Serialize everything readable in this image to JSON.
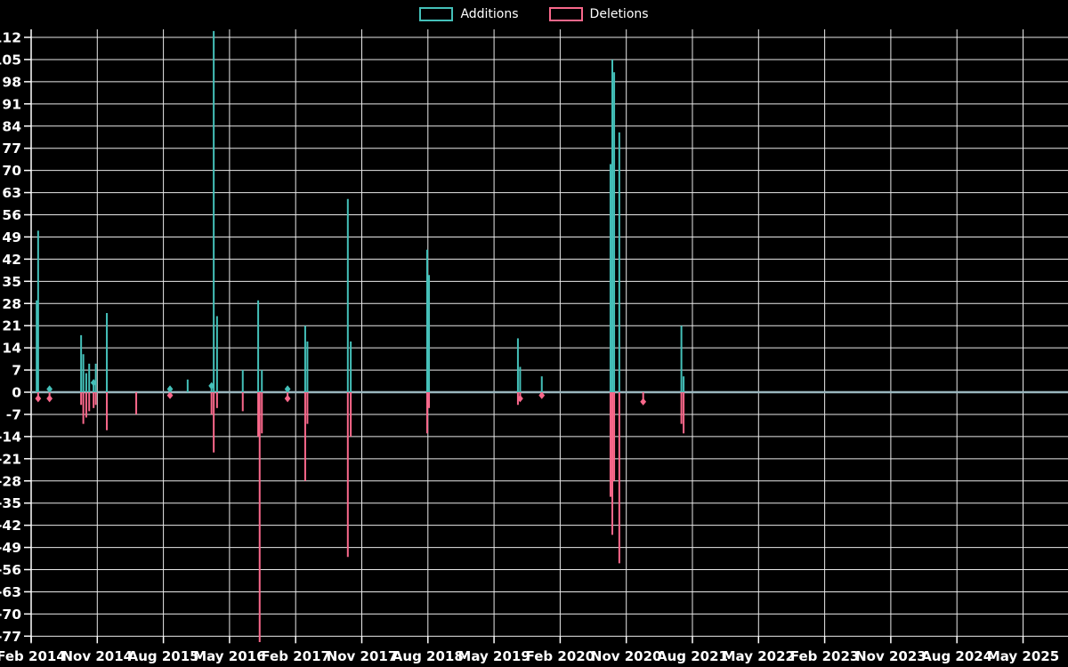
{
  "page": {
    "background": "#000000",
    "text_color": "#ffffff"
  },
  "legend": {
    "items": [
      {
        "label": "Additions",
        "color": "#44c0b9"
      },
      {
        "label": "Deletions",
        "color": "#f9688b"
      }
    ]
  },
  "chart_data": {
    "type": "line",
    "title": "",
    "xlabel": "",
    "ylabel": "",
    "grid": true,
    "legend_position": "top-center",
    "colors": {
      "additions": "#44c0b9",
      "deletions": "#f9688b",
      "zero_line": "#9ab7be",
      "grid": "#e9e9e9",
      "axis": "#ffffff",
      "tick_text": "#ffffff",
      "background": "#000000"
    },
    "x_axis": {
      "tick_labels": [
        "Feb 2014",
        "Nov 2014",
        "Aug 2015",
        "May 2016",
        "Feb 2017",
        "Nov 2017",
        "Aug 2018",
        "May 2019",
        "Feb 2020",
        "Nov 2020",
        "Aug 2021",
        "May 2022",
        "Feb 2023",
        "Nov 2023",
        "Aug 2024",
        "May 2025"
      ],
      "months_per_tick": 9
    },
    "y_axis": {
      "min": -77,
      "max": 112,
      "step": 7,
      "tick_labels": [
        "112",
        "105",
        "98",
        "91",
        "84",
        "77",
        "70",
        "63",
        "56",
        "49",
        "42",
        "35",
        "28",
        "21",
        "14",
        "7",
        "0",
        "-7",
        "-14",
        "-21",
        "-28",
        "-35",
        "-42",
        "-49",
        "-56",
        "-63",
        "-70",
        "-77"
      ]
    },
    "ylim_drawn": [
      -79,
      114.5
    ],
    "series": [
      {
        "name": "Additions",
        "sign": "positive"
      },
      {
        "name": "Deletions",
        "sign": "negative"
      }
    ],
    "baseline_value": 0,
    "baseline_extent_note": "zero line runs flat from Jul 2021 to right edge (May 2025+)",
    "events": [
      {
        "t": 0.75,
        "date": "Mar 2014",
        "additions": 29,
        "deletions": 0
      },
      {
        "t": 0.95,
        "date": "Mar 2014",
        "additions": 51,
        "deletions": -2
      },
      {
        "t": 2.5,
        "date": "Apr 2014",
        "additions": 1,
        "deletions": -2
      },
      {
        "t": 6.8,
        "date": "Sep 2014",
        "additions": 18,
        "deletions": -4
      },
      {
        "t": 7.1,
        "date": "Sep 2014",
        "additions": 12,
        "deletions": -10
      },
      {
        "t": 7.5,
        "date": "Sep 2014",
        "additions": 6,
        "deletions": -8
      },
      {
        "t": 7.9,
        "date": "Oct 2014",
        "additions": 9,
        "deletions": -6
      },
      {
        "t": 8.5,
        "date": "Oct 2014",
        "additions": 3,
        "deletions": -5
      },
      {
        "t": 8.8,
        "date": "Nov 2014",
        "additions": 9,
        "deletions": -4
      },
      {
        "t": 10.3,
        "date": "Dec 2014",
        "additions": 25,
        "deletions": -12
      },
      {
        "t": 14.3,
        "date": "Apr 2015",
        "additions": 0,
        "deletions": -7
      },
      {
        "t": 18.9,
        "date": "Sep 2015",
        "additions": 1,
        "deletions": -1
      },
      {
        "t": 21.3,
        "date": "Nov 2015",
        "additions": 4,
        "deletions": 0
      },
      {
        "t": 24.55,
        "date": "Feb 2016",
        "additions": 2,
        "deletions": -7
      },
      {
        "t": 24.85,
        "date": "Feb 2016",
        "additions": 114,
        "deletions": -19,
        "note": "additions spike clipped at top of plot (>112)"
      },
      {
        "t": 25.3,
        "date": "Mar 2016",
        "additions": 24,
        "deletions": -5
      },
      {
        "t": 28.8,
        "date": "Jun 2016",
        "additions": 7,
        "deletions": -6
      },
      {
        "t": 30.9,
        "date": "Sep 2016",
        "additions": 29,
        "deletions": -14
      },
      {
        "t": 31.1,
        "date": "Sep 2016",
        "additions": 0,
        "deletions": -79,
        "note": "deletions spike clipped at bottom of plot (<-77)"
      },
      {
        "t": 31.4,
        "date": "Sep 2016",
        "additions": 7,
        "deletions": -13
      },
      {
        "t": 34.9,
        "date": "Jan 2017",
        "additions": 1,
        "deletions": -2
      },
      {
        "t": 37.3,
        "date": "Mar 2017",
        "additions": 21,
        "deletions": -28
      },
      {
        "t": 37.6,
        "date": "Mar 2017",
        "additions": 16,
        "deletions": -10
      },
      {
        "t": 43.1,
        "date": "Sep 2017",
        "additions": 61,
        "deletions": -52
      },
      {
        "t": 43.5,
        "date": "Sep 2017",
        "additions": 16,
        "deletions": -14
      },
      {
        "t": 53.9,
        "date": "Aug 2018",
        "additions": 45,
        "deletions": -13
      },
      {
        "t": 54.15,
        "date": "Aug 2018",
        "additions": 37,
        "deletions": -5
      },
      {
        "t": 66.25,
        "date": "Aug 2019",
        "additions": 17,
        "deletions": -4
      },
      {
        "t": 66.55,
        "date": "Aug 2019",
        "additions": 8,
        "deletions": -2
      },
      {
        "t": 69.5,
        "date": "Nov 2019",
        "additions": 5,
        "deletions": -1
      },
      {
        "t": 78.85,
        "date": "Sep 2020",
        "additions": 72,
        "deletions": -33
      },
      {
        "t": 79.1,
        "date": "Sep 2020",
        "additions": 105,
        "deletions": -45
      },
      {
        "t": 79.35,
        "date": "Oct 2020",
        "additions": 101,
        "deletions": -28
      },
      {
        "t": 80.05,
        "date": "Oct 2020",
        "additions": 82,
        "deletions": -54
      },
      {
        "t": 83.3,
        "date": "Jan 2021",
        "additions": 0,
        "deletions": -3
      },
      {
        "t": 88.5,
        "date": "Jun 2021",
        "additions": 21,
        "deletions": -10
      },
      {
        "t": 88.8,
        "date": "Jul 2021",
        "additions": 5,
        "deletions": -13
      }
    ]
  }
}
